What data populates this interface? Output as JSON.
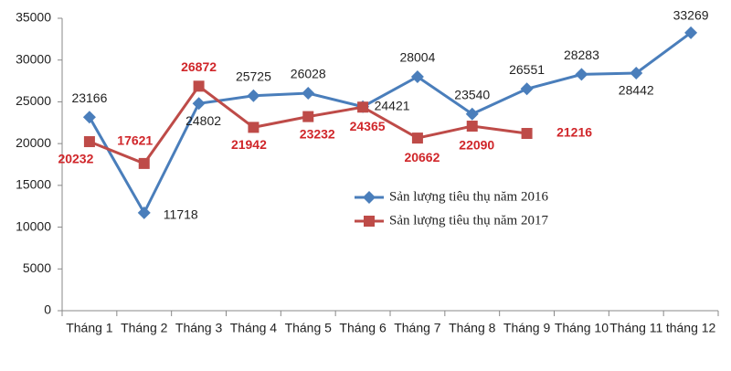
{
  "chart_data": {
    "type": "line",
    "categories": [
      "Tháng 1",
      "Tháng 2",
      "Tháng 3",
      "Tháng 4",
      "Tháng 5",
      "Tháng 6",
      "Tháng 7",
      "Tháng 8",
      "Tháng 9",
      "Tháng 10",
      "Tháng 11",
      "tháng 12"
    ],
    "series": [
      {
        "name": "Sản lượng tiêu thụ năm 2016",
        "color": "#4a7ebb",
        "marker": "diamond",
        "values": [
          23166,
          11718,
          24802,
          25725,
          26028,
          24421,
          28004,
          23540,
          26551,
          28283,
          28442,
          33269
        ]
      },
      {
        "name": "Sản lượng tiêu thụ năm 2017",
        "color": "#be4b48",
        "marker": "square",
        "values": [
          20232,
          17621,
          26872,
          21942,
          23232,
          24365,
          20662,
          22090,
          21216,
          null,
          null,
          null
        ]
      }
    ],
    "ylim": [
      0,
      35000
    ],
    "yticks": [
      0,
      5000,
      10000,
      15000,
      20000,
      25000,
      30000,
      35000
    ],
    "grid": false,
    "legend": "center"
  }
}
